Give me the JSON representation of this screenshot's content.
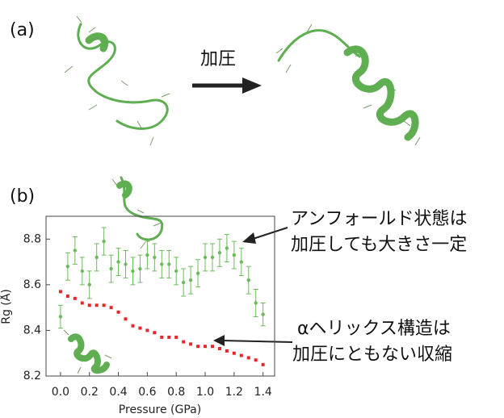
{
  "panel_a": {
    "label": "(a)",
    "arrow_label": "加圧"
  },
  "panel_b": {
    "label": "(b)",
    "annotations": [
      [
        "アンフォールド状態は",
        "加圧しても大きさ一定"
      ],
      [
        "αヘリックス構造は",
        "加圧にともない収縮"
      ]
    ]
  },
  "chart_data": {
    "type": "scatter",
    "xlabel": "Pressure (GPa)",
    "ylabel": "Rg (Å)",
    "x": [
      0.0,
      0.05,
      0.1,
      0.15,
      0.2,
      0.25,
      0.3,
      0.35,
      0.4,
      0.45,
      0.5,
      0.55,
      0.6,
      0.65,
      0.7,
      0.75,
      0.8,
      0.85,
      0.9,
      0.95,
      1.0,
      1.05,
      1.1,
      1.15,
      1.2,
      1.25,
      1.3,
      1.35,
      1.4
    ],
    "series": [
      {
        "color": "#6cbb5c",
        "values": [
          8.46,
          8.68,
          8.75,
          8.66,
          8.6,
          8.72,
          8.79,
          8.67,
          8.7,
          8.69,
          8.66,
          8.67,
          8.73,
          8.72,
          8.69,
          8.69,
          8.66,
          8.61,
          8.62,
          8.65,
          8.72,
          8.72,
          8.74,
          8.76,
          8.73,
          8.7,
          8.62,
          8.52,
          8.47
        ],
        "errors": [
          0.05,
          0.06,
          0.06,
          0.06,
          0.06,
          0.06,
          0.06,
          0.06,
          0.06,
          0.06,
          0.06,
          0.06,
          0.06,
          0.06,
          0.06,
          0.06,
          0.06,
          0.06,
          0.06,
          0.06,
          0.06,
          0.06,
          0.06,
          0.06,
          0.06,
          0.06,
          0.06,
          0.06,
          0.05
        ]
      },
      {
        "color": "#e8262a",
        "values": [
          8.57,
          8.55,
          8.54,
          8.52,
          8.51,
          8.51,
          8.51,
          8.5,
          8.48,
          8.45,
          8.42,
          8.41,
          8.4,
          8.39,
          8.37,
          8.37,
          8.37,
          8.35,
          8.34,
          8.33,
          8.33,
          8.33,
          8.32,
          8.31,
          8.3,
          8.29,
          8.28,
          8.27,
          8.25
        ]
      }
    ],
    "xlim": [
      -0.1,
      1.48
    ],
    "ylim": [
      8.2,
      8.9
    ],
    "xticks": [
      {
        "value": 0,
        "label": "0.0"
      },
      0.2,
      0.4,
      0.6,
      0.8,
      {
        "value": 1,
        "label": "1.0"
      },
      1.2,
      1.4
    ],
    "yticks": [
      8.2,
      8.4,
      8.6,
      8.8
    ]
  }
}
